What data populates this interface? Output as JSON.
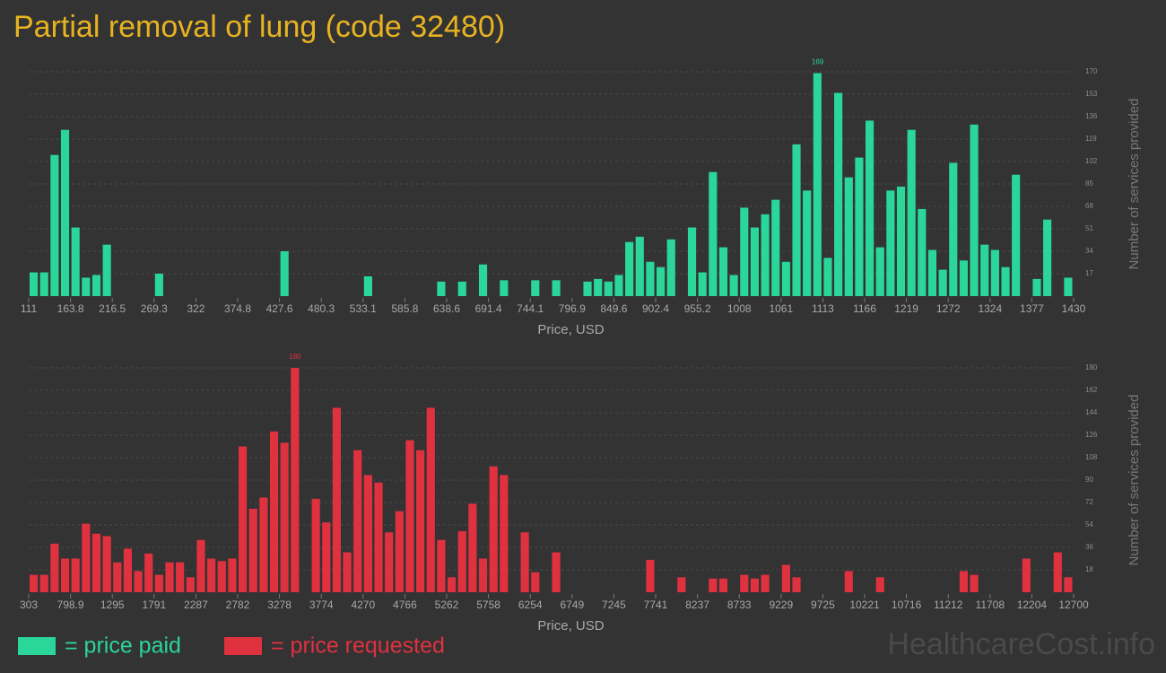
{
  "title": "Partial removal of lung (code 32480)",
  "watermark": "HealthcareCost.info",
  "chart_data": [
    {
      "type": "histogram",
      "name": "= price paid",
      "color": "#2ad69a",
      "xlabel": "Price, USD",
      "ylabel": "Number of services provided",
      "grid": true,
      "bins": [
        111,
        124.19,
        137.38,
        150.57,
        163.76,
        176.95,
        190.14,
        203.33,
        216.52,
        229.71,
        242.9,
        256.09,
        269.28,
        282.47,
        295.66,
        308.85,
        322.04,
        335.23,
        348.42,
        361.61,
        374.8,
        387.99,
        401.18,
        414.37,
        427.56,
        440.75,
        453.94,
        467.13,
        480.32,
        493.51,
        506.7,
        519.89,
        533.08,
        546.27,
        559.46,
        572.65,
        585.84,
        599.03,
        612.22,
        625.41,
        638.6,
        651.79,
        664.98,
        678.17,
        691.36,
        704.55,
        717.74,
        730.93,
        744.12,
        757.31,
        770.5,
        783.69,
        796.88,
        810.07,
        823.26,
        836.45,
        849.64,
        862.83,
        876.02,
        889.21,
        902.4,
        915.59,
        928.78,
        941.97,
        955.16,
        968.35,
        981.54,
        994.73,
        1007.92,
        1021.11,
        1034.3,
        1047.49,
        1060.68,
        1073.87,
        1087.06,
        1100.25,
        1113.44,
        1126.63,
        1139.82,
        1153.01,
        1166.2,
        1179.39,
        1192.58,
        1205.77,
        1218.96,
        1232.15,
        1245.34,
        1258.53,
        1271.72,
        1284.91,
        1298.1,
        1311.29,
        1324.48,
        1337.67,
        1350.86,
        1364.05,
        1377.24,
        1390.43,
        1403.62,
        1416.81,
        1430
      ],
      "counts": [
        18,
        18,
        107,
        126,
        52,
        14,
        16,
        39,
        0,
        0,
        0,
        0,
        17,
        0,
        0,
        0,
        0,
        0,
        0,
        0,
        0,
        0,
        0,
        0,
        34,
        0,
        0,
        0,
        0,
        0,
        0,
        0,
        15,
        0,
        0,
        0,
        0,
        0,
        0,
        11,
        0,
        11,
        0,
        24,
        0,
        12,
        0,
        0,
        12,
        0,
        12,
        0,
        0,
        11,
        13,
        11,
        16,
        41,
        45,
        26,
        22,
        43,
        0,
        52,
        18,
        94,
        37,
        16,
        67,
        52,
        62,
        73,
        26,
        115,
        80,
        169,
        29,
        154,
        90,
        105,
        133,
        37,
        80,
        83,
        126,
        66,
        35,
        20,
        101,
        27,
        130,
        39,
        35,
        22,
        92,
        0,
        13,
        58,
        0,
        14
      ],
      "xlim": [
        111,
        1430
      ],
      "ylim": [
        0,
        170
      ],
      "xticks": [
        111,
        {
          "value": 163.76,
          "label": "163.8"
        },
        {
          "value": 216.52,
          "label": "216.5"
        },
        {
          "value": 269.28,
          "label": "269.3"
        },
        {
          "value": 322.04,
          "label": "322"
        },
        374.8,
        {
          "value": 427.56,
          "label": "427.6"
        },
        {
          "value": 480.32,
          "label": "480.3"
        },
        {
          "value": 533.08,
          "label": "533.1"
        },
        {
          "value": 585.84,
          "label": "585.8"
        },
        638.6,
        {
          "value": 691.36,
          "label": "691.4"
        },
        {
          "value": 744.12,
          "label": "744.1"
        },
        {
          "value": 796.88,
          "label": "796.9"
        },
        {
          "value": 849.64,
          "label": "849.6"
        },
        902.4,
        {
          "value": 955.16,
          "label": "955.2"
        },
        {
          "value": 1007.92,
          "label": "1008"
        },
        {
          "value": 1060.68,
          "label": "1061"
        },
        {
          "value": 1113.44,
          "label": "1113"
        },
        {
          "value": 1166.2,
          "label": "1166"
        },
        {
          "value": 1218.96,
          "label": "1219"
        },
        {
          "value": 1271.72,
          "label": "1272"
        },
        {
          "value": 1324.48,
          "label": "1324"
        },
        {
          "value": 1377.24,
          "label": "1377"
        },
        1430
      ],
      "yticks": [
        17,
        34,
        51,
        68,
        85,
        102,
        119,
        136,
        153,
        170
      ]
    },
    {
      "type": "histogram",
      "name": "= price requested",
      "color": "#e0313f",
      "xlabel": "Price, USD",
      "ylabel": "Number of services provided",
      "grid": true,
      "bins": [
        303,
        426.97,
        550.94,
        674.91,
        798.88,
        922.85,
        1046.82,
        1170.79,
        1294.76,
        1418.73,
        1542.7,
        1666.67,
        1790.64,
        1914.61,
        2038.58,
        2162.55,
        2286.52,
        2410.49,
        2534.46,
        2658.43,
        2782.4,
        2906.37,
        3030.34,
        3154.31,
        3278.28,
        3402.25,
        3526.22,
        3650.19,
        3774.16,
        3898.13,
        4022.1,
        4146.07,
        4270.04,
        4394.01,
        4517.98,
        4641.95,
        4765.92,
        4889.89,
        5013.86,
        5137.83,
        5261.8,
        5385.77,
        5509.74,
        5633.71,
        5757.68,
        5881.65,
        6005.62,
        6129.59,
        6253.56,
        6377.53,
        6501.5,
        6625.47,
        6749.44,
        6873.41,
        6997.38,
        7121.35,
        7245.32,
        7369.29,
        7493.26,
        7617.23,
        7741.2,
        7865.17,
        7989.14,
        8113.11,
        8237.08,
        8361.05,
        8485.02,
        8608.99,
        8732.96,
        8856.93,
        8980.9,
        9104.87,
        9228.84,
        9352.81,
        9476.78,
        9600.75,
        9724.72,
        9848.69,
        9972.66,
        10096.63,
        10220.6,
        10344.57,
        10468.54,
        10592.51,
        10716.48,
        10840.45,
        10964.42,
        11088.39,
        11212.36,
        11336.33,
        11460.3,
        11584.27,
        11708.24,
        11832.21,
        11956.18,
        12080.15,
        12204.12,
        12328.09,
        12452.06,
        12576.03,
        12700
      ],
      "counts": [
        14,
        14,
        39,
        27,
        27,
        55,
        47,
        45,
        24,
        35,
        17,
        31,
        14,
        24,
        24,
        12,
        42,
        27,
        25,
        27,
        117,
        67,
        76,
        129,
        120,
        180,
        0,
        75,
        56,
        148,
        32,
        114,
        94,
        88,
        48,
        65,
        122,
        114,
        148,
        42,
        12,
        49,
        71,
        27,
        101,
        94,
        0,
        48,
        16,
        0,
        32,
        0,
        0,
        0,
        0,
        0,
        0,
        0,
        0,
        26,
        0,
        0,
        12,
        0,
        0,
        11,
        11,
        0,
        14,
        11,
        14,
        0,
        22,
        12,
        0,
        0,
        0,
        0,
        17,
        0,
        0,
        12,
        0,
        0,
        0,
        0,
        0,
        0,
        0,
        17,
        14,
        0,
        0,
        0,
        0,
        27,
        0,
        0,
        32,
        12
      ],
      "xlim": [
        303,
        12700
      ],
      "ylim": [
        0,
        180
      ],
      "xticks": [
        303,
        {
          "value": 798.88,
          "label": "798.9"
        },
        {
          "value": 1294.76,
          "label": "1295"
        },
        {
          "value": 1790.64,
          "label": "1791"
        },
        {
          "value": 2286.52,
          "label": "2287"
        },
        {
          "value": 2782.4,
          "label": "2782"
        },
        {
          "value": 3278.28,
          "label": "3278"
        },
        {
          "value": 3774.16,
          "label": "3774"
        },
        {
          "value": 4270.04,
          "label": "4270"
        },
        {
          "value": 4765.92,
          "label": "4766"
        },
        {
          "value": 5261.8,
          "label": "5262"
        },
        {
          "value": 5757.68,
          "label": "5758"
        },
        {
          "value": 6253.56,
          "label": "6254"
        },
        {
          "value": 6749.44,
          "label": "6749"
        },
        {
          "value": 7245.32,
          "label": "7245"
        },
        {
          "value": 7741.2,
          "label": "7741"
        },
        {
          "value": 8237.08,
          "label": "8237"
        },
        {
          "value": 8732.96,
          "label": "8733"
        },
        {
          "value": 9228.84,
          "label": "9229"
        },
        {
          "value": 9724.72,
          "label": "9725"
        },
        {
          "value": 10220.6,
          "label": "10221"
        },
        {
          "value": 10716.48,
          "label": "10716"
        },
        {
          "value": 11212.36,
          "label": "11212"
        },
        {
          "value": 11708.24,
          "label": "11708"
        },
        {
          "value": 12204.12,
          "label": "12204"
        },
        12700
      ],
      "yticks": [
        18,
        36,
        54,
        72,
        90,
        108,
        126,
        144,
        162,
        180
      ]
    }
  ]
}
